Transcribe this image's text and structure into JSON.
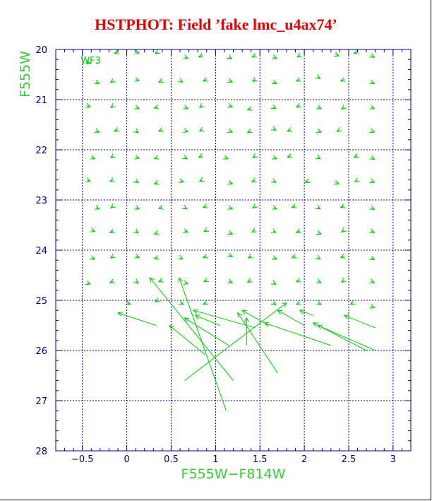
{
  "title": "HSTPHOT: Field ’fake lmc_u4ax74’",
  "colors": {
    "title": "#e60000",
    "axes": "#000080",
    "grid": "#0000cc",
    "vectors": "#00cc00",
    "labels": "#33cc33"
  },
  "chart_data": {
    "type": "scatter",
    "subtype": "vector-field",
    "xlabel": "F555W−F814W",
    "ylabel": "F555W",
    "xlim": [
      -0.8,
      3.2
    ],
    "ylim": [
      28,
      20
    ],
    "y_inverted": true,
    "grid": true,
    "annotation": "WF3",
    "x_ticks": [
      {
        "v": -0.5,
        "label": "−0.5"
      },
      {
        "v": 0,
        "label": "0"
      },
      {
        "v": 0.5,
        "label": "0.5"
      },
      {
        "v": 1,
        "label": "1"
      },
      {
        "v": 1.5,
        "label": "1.5"
      },
      {
        "v": 2,
        "label": "2"
      },
      {
        "v": 2.5,
        "label": "2.5"
      },
      {
        "v": 3,
        "label": "3"
      }
    ],
    "y_ticks": [
      {
        "v": 20,
        "label": "20"
      },
      {
        "v": 21,
        "label": "21"
      },
      {
        "v": 22,
        "label": "22"
      },
      {
        "v": 23,
        "label": "23"
      },
      {
        "v": 24,
        "label": "24"
      },
      {
        "v": 25,
        "label": "25"
      },
      {
        "v": 26,
        "label": "26"
      },
      {
        "v": 27,
        "label": "27"
      },
      {
        "v": 28,
        "label": "28"
      }
    ],
    "grid_x": [
      -0.5,
      0,
      0.5,
      1,
      1.5,
      2,
      2.5,
      3
    ],
    "grid_y": [
      20,
      21,
      22,
      23,
      24,
      25,
      26,
      27
    ],
    "vectors": [
      {
        "x": -0.45,
        "y": 20.25,
        "dx": 0.04,
        "dy": 0.03
      },
      {
        "x": -0.1,
        "y": 20.05,
        "dx": -0.04,
        "dy": 0.03
      },
      {
        "x": 0.1,
        "y": 20.05,
        "dx": 0.04,
        "dy": 0.02
      },
      {
        "x": 0.35,
        "y": 20.05,
        "dx": -0.03,
        "dy": 0.03
      },
      {
        "x": 0.65,
        "y": 20.15,
        "dx": 0.04,
        "dy": 0.03
      },
      {
        "x": 0.85,
        "y": 20.12,
        "dx": -0.04,
        "dy": 0.03
      },
      {
        "x": 1.15,
        "y": 20.15,
        "dx": 0.03,
        "dy": 0.04
      },
      {
        "x": 1.45,
        "y": 20.12,
        "dx": -0.04,
        "dy": 0.03
      },
      {
        "x": 1.65,
        "y": 20.15,
        "dx": 0.04,
        "dy": 0.03
      },
      {
        "x": 1.95,
        "y": 20.12,
        "dx": -0.03,
        "dy": 0.03
      },
      {
        "x": 2.35,
        "y": 20.1,
        "dx": 0.04,
        "dy": 0.03
      },
      {
        "x": 2.6,
        "y": 20.05,
        "dx": -0.04,
        "dy": 0.03
      },
      {
        "x": 2.75,
        "y": 20.12,
        "dx": 0.04,
        "dy": 0.04
      },
      {
        "x": -0.35,
        "y": 20.65,
        "dx": 0.04,
        "dy": 0.03
      },
      {
        "x": -0.15,
        "y": 20.62,
        "dx": -0.03,
        "dy": 0.04
      },
      {
        "x": 0.1,
        "y": 20.6,
        "dx": 0.04,
        "dy": 0.02
      },
      {
        "x": 0.4,
        "y": 20.62,
        "dx": -0.04,
        "dy": 0.03
      },
      {
        "x": 0.6,
        "y": 20.62,
        "dx": 0.03,
        "dy": 0.03
      },
      {
        "x": 0.9,
        "y": 20.6,
        "dx": -0.04,
        "dy": 0.03
      },
      {
        "x": 1.15,
        "y": 20.62,
        "dx": 0.04,
        "dy": 0.03
      },
      {
        "x": 1.45,
        "y": 20.6,
        "dx": -0.03,
        "dy": 0.04
      },
      {
        "x": 1.65,
        "y": 20.65,
        "dx": 0.04,
        "dy": 0.03
      },
      {
        "x": 1.95,
        "y": 20.6,
        "dx": -0.04,
        "dy": 0.03
      },
      {
        "x": 2.15,
        "y": 20.55,
        "dx": 0.03,
        "dy": 0.03
      },
      {
        "x": 2.45,
        "y": 20.6,
        "dx": -0.04,
        "dy": 0.03
      },
      {
        "x": 2.75,
        "y": 20.65,
        "dx": 0.04,
        "dy": 0.03
      },
      {
        "x": -0.45,
        "y": 21.12,
        "dx": 0.04,
        "dy": 0.03
      },
      {
        "x": -0.15,
        "y": 21.12,
        "dx": -0.03,
        "dy": 0.04
      },
      {
        "x": 0.1,
        "y": 21.15,
        "dx": 0.04,
        "dy": 0.03
      },
      {
        "x": 0.35,
        "y": 21.15,
        "dx": -0.04,
        "dy": 0.02
      },
      {
        "x": 0.65,
        "y": 21.15,
        "dx": 0.04,
        "dy": 0.03
      },
      {
        "x": 0.85,
        "y": 21.12,
        "dx": -0.03,
        "dy": 0.04
      },
      {
        "x": 1.15,
        "y": 21.12,
        "dx": 0.04,
        "dy": 0.03
      },
      {
        "x": 1.4,
        "y": 21.18,
        "dx": -0.04,
        "dy": 0.02
      },
      {
        "x": 1.65,
        "y": 21.15,
        "dx": 0.03,
        "dy": 0.03
      },
      {
        "x": 1.95,
        "y": 21.12,
        "dx": -0.04,
        "dy": 0.03
      },
      {
        "x": 2.15,
        "y": 21.15,
        "dx": 0.04,
        "dy": 0.03
      },
      {
        "x": 2.45,
        "y": 21.15,
        "dx": -0.03,
        "dy": 0.04
      },
      {
        "x": 2.75,
        "y": 21.15,
        "dx": 0.04,
        "dy": 0.03
      },
      {
        "x": -0.35,
        "y": 21.62,
        "dx": 0.04,
        "dy": 0.03
      },
      {
        "x": -0.1,
        "y": 21.6,
        "dx": -0.04,
        "dy": 0.03
      },
      {
        "x": 0.1,
        "y": 21.62,
        "dx": 0.03,
        "dy": 0.04
      },
      {
        "x": 0.4,
        "y": 21.6,
        "dx": -0.04,
        "dy": 0.03
      },
      {
        "x": 0.65,
        "y": 21.62,
        "dx": 0.04,
        "dy": 0.02
      },
      {
        "x": 0.85,
        "y": 21.6,
        "dx": -0.03,
        "dy": 0.03
      },
      {
        "x": 1.15,
        "y": 21.62,
        "dx": 0.04,
        "dy": 0.03
      },
      {
        "x": 1.4,
        "y": 21.62,
        "dx": -0.04,
        "dy": 0.04
      },
      {
        "x": 1.65,
        "y": 21.58,
        "dx": 0.03,
        "dy": 0.03
      },
      {
        "x": 1.85,
        "y": 21.6,
        "dx": -0.04,
        "dy": 0.03
      },
      {
        "x": 2.15,
        "y": 21.62,
        "dx": 0.04,
        "dy": 0.03
      },
      {
        "x": 2.4,
        "y": 21.6,
        "dx": -0.03,
        "dy": 0.04
      },
      {
        "x": 2.75,
        "y": 21.62,
        "dx": 0.04,
        "dy": 0.03
      },
      {
        "x": -0.4,
        "y": 22.15,
        "dx": 0.04,
        "dy": 0.03
      },
      {
        "x": -0.15,
        "y": 22.12,
        "dx": -0.03,
        "dy": 0.04
      },
      {
        "x": 0.1,
        "y": 22.15,
        "dx": 0.04,
        "dy": 0.02
      },
      {
        "x": 0.35,
        "y": 22.15,
        "dx": -0.04,
        "dy": 0.03
      },
      {
        "x": 0.65,
        "y": 22.15,
        "dx": 0.03,
        "dy": 0.03
      },
      {
        "x": 0.85,
        "y": 22.12,
        "dx": -0.04,
        "dy": 0.03
      },
      {
        "x": 1.1,
        "y": 22.15,
        "dx": 0.04,
        "dy": 0.03
      },
      {
        "x": 1.45,
        "y": 22.12,
        "dx": -0.03,
        "dy": 0.04
      },
      {
        "x": 1.65,
        "y": 22.15,
        "dx": 0.04,
        "dy": 0.03
      },
      {
        "x": 1.85,
        "y": 22.12,
        "dx": -0.04,
        "dy": 0.03
      },
      {
        "x": 2.15,
        "y": 22.15,
        "dx": 0.03,
        "dy": 0.03
      },
      {
        "x": 2.6,
        "y": 22.12,
        "dx": -0.04,
        "dy": 0.03
      },
      {
        "x": 2.75,
        "y": 22.15,
        "dx": 0.04,
        "dy": 0.04
      },
      {
        "x": -0.45,
        "y": 22.6,
        "dx": 0.04,
        "dy": 0.03
      },
      {
        "x": -0.15,
        "y": 22.6,
        "dx": -0.04,
        "dy": 0.03
      },
      {
        "x": 0.1,
        "y": 22.62,
        "dx": 0.03,
        "dy": 0.04
      },
      {
        "x": 0.35,
        "y": 22.65,
        "dx": -0.04,
        "dy": 0.03
      },
      {
        "x": 0.6,
        "y": 22.62,
        "dx": 0.04,
        "dy": 0.02
      },
      {
        "x": 0.85,
        "y": 22.6,
        "dx": -0.03,
        "dy": 0.03
      },
      {
        "x": 1.15,
        "y": 22.65,
        "dx": 0.04,
        "dy": 0.03
      },
      {
        "x": 1.45,
        "y": 22.6,
        "dx": -0.04,
        "dy": 0.04
      },
      {
        "x": 1.65,
        "y": 22.62,
        "dx": 0.03,
        "dy": 0.03
      },
      {
        "x": 2.05,
        "y": 22.62,
        "dx": -0.04,
        "dy": 0.03
      },
      {
        "x": 2.35,
        "y": 22.65,
        "dx": 0.04,
        "dy": 0.03
      },
      {
        "x": 2.6,
        "y": 22.6,
        "dx": -0.03,
        "dy": 0.04
      },
      {
        "x": 2.75,
        "y": 22.62,
        "dx": 0.04,
        "dy": 0.03
      },
      {
        "x": -0.35,
        "y": 23.15,
        "dx": 0.04,
        "dy": 0.03
      },
      {
        "x": -0.15,
        "y": 23.12,
        "dx": -0.03,
        "dy": 0.04
      },
      {
        "x": 0.1,
        "y": 23.15,
        "dx": 0.04,
        "dy": 0.03
      },
      {
        "x": 0.4,
        "y": 23.15,
        "dx": -0.04,
        "dy": 0.02
      },
      {
        "x": 0.65,
        "y": 23.15,
        "dx": 0.03,
        "dy": 0.03
      },
      {
        "x": 0.9,
        "y": 23.12,
        "dx": -0.04,
        "dy": 0.03
      },
      {
        "x": 1.15,
        "y": 23.15,
        "dx": 0.04,
        "dy": 0.03
      },
      {
        "x": 1.45,
        "y": 23.12,
        "dx": -0.03,
        "dy": 0.04
      },
      {
        "x": 1.65,
        "y": 23.15,
        "dx": 0.04,
        "dy": 0.03
      },
      {
        "x": 1.9,
        "y": 23.12,
        "dx": -0.04,
        "dy": 0.03
      },
      {
        "x": 2.15,
        "y": 23.15,
        "dx": 0.03,
        "dy": 0.03
      },
      {
        "x": 2.45,
        "y": 23.12,
        "dx": -0.04,
        "dy": 0.03
      },
      {
        "x": 2.75,
        "y": 23.15,
        "dx": 0.04,
        "dy": 0.04
      },
      {
        "x": -0.4,
        "y": 23.6,
        "dx": 0.04,
        "dy": 0.03
      },
      {
        "x": -0.15,
        "y": 23.62,
        "dx": -0.04,
        "dy": 0.03
      },
      {
        "x": 0.1,
        "y": 23.62,
        "dx": 0.03,
        "dy": 0.04
      },
      {
        "x": 0.35,
        "y": 23.65,
        "dx": -0.04,
        "dy": 0.03
      },
      {
        "x": 0.65,
        "y": 23.62,
        "dx": 0.04,
        "dy": 0.02
      },
      {
        "x": 0.9,
        "y": 23.6,
        "dx": -0.03,
        "dy": 0.03
      },
      {
        "x": 1.15,
        "y": 23.65,
        "dx": 0.04,
        "dy": 0.03
      },
      {
        "x": 1.45,
        "y": 23.6,
        "dx": -0.04,
        "dy": 0.04
      },
      {
        "x": 1.65,
        "y": 23.62,
        "dx": 0.03,
        "dy": 0.03
      },
      {
        "x": 1.95,
        "y": 23.62,
        "dx": -0.04,
        "dy": 0.03
      },
      {
        "x": 2.15,
        "y": 23.65,
        "dx": 0.04,
        "dy": 0.03
      },
      {
        "x": 2.45,
        "y": 23.6,
        "dx": -0.03,
        "dy": 0.04
      },
      {
        "x": 2.75,
        "y": 23.62,
        "dx": 0.04,
        "dy": 0.03
      },
      {
        "x": -0.4,
        "y": 24.15,
        "dx": 0.04,
        "dy": 0.03
      },
      {
        "x": -0.15,
        "y": 24.12,
        "dx": -0.03,
        "dy": 0.04
      },
      {
        "x": 0.1,
        "y": 24.12,
        "dx": 0.04,
        "dy": 0.03
      },
      {
        "x": 0.35,
        "y": 24.15,
        "dx": -0.04,
        "dy": 0.02
      },
      {
        "x": 0.6,
        "y": 24.15,
        "dx": 0.03,
        "dy": 0.03
      },
      {
        "x": 0.9,
        "y": 24.12,
        "dx": -0.04,
        "dy": 0.03
      },
      {
        "x": 1.15,
        "y": 24.1,
        "dx": 0.04,
        "dy": 0.03
      },
      {
        "x": 1.4,
        "y": 24.12,
        "dx": -0.03,
        "dy": 0.04
      },
      {
        "x": 1.65,
        "y": 24.15,
        "dx": 0.04,
        "dy": 0.03
      },
      {
        "x": 1.9,
        "y": 24.12,
        "dx": -0.04,
        "dy": 0.03
      },
      {
        "x": 2.15,
        "y": 24.15,
        "dx": 0.03,
        "dy": 0.03
      },
      {
        "x": 2.45,
        "y": 24.12,
        "dx": -0.04,
        "dy": 0.03
      },
      {
        "x": 2.75,
        "y": 24.15,
        "dx": 0.04,
        "dy": 0.04
      },
      {
        "x": -0.45,
        "y": 24.65,
        "dx": 0.04,
        "dy": 0.03
      },
      {
        "x": -0.15,
        "y": 24.62,
        "dx": -0.04,
        "dy": 0.03
      },
      {
        "x": 0.1,
        "y": 24.62,
        "dx": 0.03,
        "dy": 0.04
      },
      {
        "x": 0.4,
        "y": 24.6,
        "dx": -0.04,
        "dy": 0.03
      },
      {
        "x": 0.65,
        "y": 24.65,
        "dx": 0.04,
        "dy": 0.02
      },
      {
        "x": 0.9,
        "y": 24.6,
        "dx": -0.03,
        "dy": 0.03
      },
      {
        "x": 1.15,
        "y": 24.62,
        "dx": 0.04,
        "dy": 0.03
      },
      {
        "x": 1.4,
        "y": 24.6,
        "dx": -0.04,
        "dy": 0.04
      },
      {
        "x": 1.65,
        "y": 24.65,
        "dx": 0.03,
        "dy": 0.03
      },
      {
        "x": 1.95,
        "y": 24.6,
        "dx": -0.04,
        "dy": 0.03
      },
      {
        "x": 2.15,
        "y": 24.62,
        "dx": 0.04,
        "dy": 0.03
      },
      {
        "x": 2.45,
        "y": 24.6,
        "dx": -0.03,
        "dy": 0.04
      },
      {
        "x": 2.75,
        "y": 24.62,
        "dx": 0.04,
        "dy": 0.03
      },
      {
        "x": 0.0,
        "y": 25.05,
        "dx": 0.04,
        "dy": 0.03
      },
      {
        "x": 0.35,
        "y": 25.0,
        "dx": -0.03,
        "dy": 0.03
      },
      {
        "x": 0.6,
        "y": 25.05,
        "dx": 0.04,
        "dy": 0.03
      },
      {
        "x": 0.9,
        "y": 25.05,
        "dx": -0.04,
        "dy": 0.03
      },
      {
        "x": 1.65,
        "y": 25.05,
        "dx": 0.03,
        "dy": 0.04
      },
      {
        "x": 1.95,
        "y": 25.05,
        "dx": -0.04,
        "dy": 0.03
      },
      {
        "x": 2.15,
        "y": 25.05,
        "dx": 0.04,
        "dy": 0.03
      },
      {
        "x": 2.55,
        "y": 25.05,
        "dx": -0.03,
        "dy": 0.03
      },
      {
        "x": 2.75,
        "y": 25.12,
        "dx": 0.04,
        "dy": 0.03
      },
      {
        "x": 0.33,
        "y": 25.5,
        "dx": -0.43,
        "dy": -0.25
      },
      {
        "x": 1.2,
        "y": 26.6,
        "dx": -0.94,
        "dy": -2.05
      },
      {
        "x": 1.12,
        "y": 27.2,
        "dx": -0.53,
        "dy": -2.65
      },
      {
        "x": 0.88,
        "y": 26.08,
        "dx": -0.4,
        "dy": -0.58
      },
      {
        "x": 1.45,
        "y": 25.55,
        "dx": -0.7,
        "dy": -0.35
      },
      {
        "x": 1.15,
        "y": 25.9,
        "dx": -0.5,
        "dy": -0.55
      },
      {
        "x": 0.65,
        "y": 26.6,
        "dx": 1.15,
        "dy": -1.55
      },
      {
        "x": 1.35,
        "y": 25.9,
        "dx": 0.0,
        "dy": -0.55
      },
      {
        "x": 1.7,
        "y": 26.45,
        "dx": -0.45,
        "dy": -1.2
      },
      {
        "x": 1.05,
        "y": 25.5,
        "dx": -0.28,
        "dy": -0.2
      },
      {
        "x": 1.6,
        "y": 25.5,
        "dx": -0.3,
        "dy": -0.3
      },
      {
        "x": 2.3,
        "y": 25.9,
        "dx": -0.75,
        "dy": -0.45
      },
      {
        "x": 2.0,
        "y": 25.5,
        "dx": -0.3,
        "dy": -0.3
      },
      {
        "x": 2.8,
        "y": 26.0,
        "dx": -0.65,
        "dy": -0.5
      },
      {
        "x": 2.7,
        "y": 26.0,
        "dx": -0.6,
        "dy": -0.55
      },
      {
        "x": 2.8,
        "y": 25.55,
        "dx": -0.35,
        "dy": -0.25
      },
      {
        "x": 2.1,
        "y": 25.3,
        "dx": -0.15,
        "dy": -0.1
      }
    ]
  }
}
